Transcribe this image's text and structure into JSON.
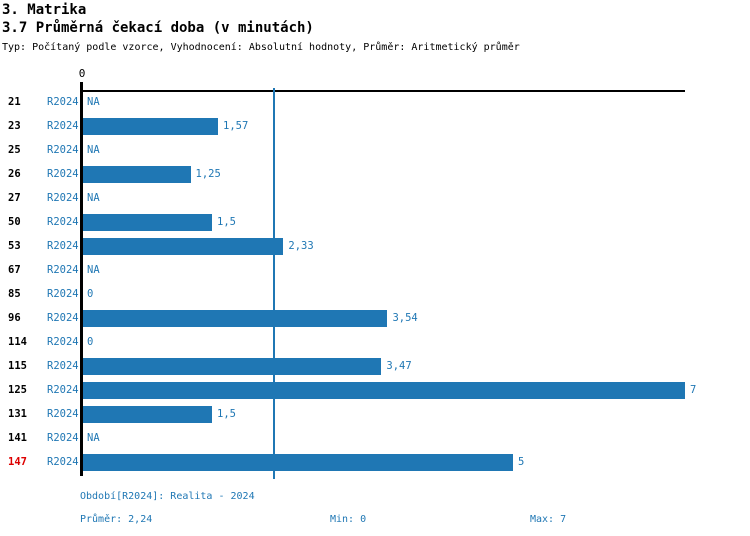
{
  "header": {
    "section_title": "3. Matrika",
    "chart_title": "3.7 Průměrná čekací doba (v minutách)",
    "subtitle": "Typ: Počítaný podle vzorce, Vyhodnocení: Absolutní hodnoty, Průměr: Aritmetický průměr"
  },
  "chart_data": {
    "type": "bar",
    "orientation": "horizontal",
    "title": "3.7 Průměrná čekací doba (v minutách)",
    "axis": {
      "min": 0,
      "max": 7,
      "zero_label": "0"
    },
    "mean_line_value": 2.24,
    "series_name": "R2024",
    "categories": [
      "21",
      "23",
      "25",
      "26",
      "27",
      "50",
      "53",
      "67",
      "85",
      "96",
      "114",
      "115",
      "125",
      "131",
      "141",
      "147"
    ],
    "rows": [
      {
        "id": "21",
        "series": "R2024",
        "value": null,
        "label": "NA",
        "highlight": false
      },
      {
        "id": "23",
        "series": "R2024",
        "value": 1.57,
        "label": "1,57",
        "highlight": false
      },
      {
        "id": "25",
        "series": "R2024",
        "value": null,
        "label": "NA",
        "highlight": false
      },
      {
        "id": "26",
        "series": "R2024",
        "value": 1.25,
        "label": "1,25",
        "highlight": false
      },
      {
        "id": "27",
        "series": "R2024",
        "value": null,
        "label": "NA",
        "highlight": false
      },
      {
        "id": "50",
        "series": "R2024",
        "value": 1.5,
        "label": "1,5",
        "highlight": false
      },
      {
        "id": "53",
        "series": "R2024",
        "value": 2.33,
        "label": "2,33",
        "highlight": false
      },
      {
        "id": "67",
        "series": "R2024",
        "value": null,
        "label": "NA",
        "highlight": false
      },
      {
        "id": "85",
        "series": "R2024",
        "value": 0,
        "label": "0",
        "highlight": false
      },
      {
        "id": "96",
        "series": "R2024",
        "value": 3.54,
        "label": "3,54",
        "highlight": false
      },
      {
        "id": "114",
        "series": "R2024",
        "value": 0,
        "label": "0",
        "highlight": false
      },
      {
        "id": "115",
        "series": "R2024",
        "value": 3.47,
        "label": "3,47",
        "highlight": false
      },
      {
        "id": "125",
        "series": "R2024",
        "value": 7,
        "label": "7",
        "highlight": false
      },
      {
        "id": "131",
        "series": "R2024",
        "value": 1.5,
        "label": "1,5",
        "highlight": false
      },
      {
        "id": "141",
        "series": "R2024",
        "value": null,
        "label": "NA",
        "highlight": false
      },
      {
        "id": "147",
        "series": "R2024",
        "value": 5,
        "label": "5",
        "highlight": true
      }
    ],
    "colors": {
      "bar": "#1f77b4",
      "text_blue": "#1f77b4",
      "highlight_red": "#dd0000",
      "axis_black": "#000000"
    },
    "legend_position": "bottom",
    "grid": false
  },
  "footer": {
    "period": "Období[R2024]: Realita - 2024",
    "average": "Průměr: 2,24",
    "min": "Min: 0",
    "max": "Max: 7"
  }
}
